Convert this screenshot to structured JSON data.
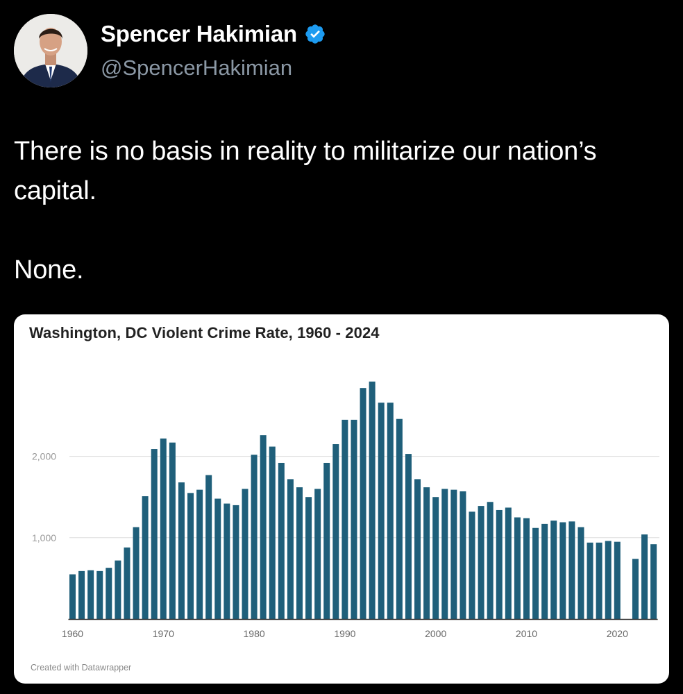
{
  "tweet": {
    "author": {
      "display_name": "Spencer Hakimian",
      "handle": "@SpencerHakimian",
      "verified": true,
      "verified_icon": "verified-badge-icon",
      "verified_color": "#1d9bf0"
    },
    "text_lines": [
      "There is no basis in reality to militarize our nation’s capital.",
      "None."
    ]
  },
  "colors": {
    "background": "#000000",
    "bar": "#1f5f7a",
    "gridline": "#dddddd"
  },
  "chart_credit": "Created with Datawrapper",
  "chart_data": {
    "type": "bar",
    "title": "Washington, DC Violent Crime Rate, 1960 - 2024",
    "xlabel": "",
    "ylabel": "",
    "x": [
      1960,
      1961,
      1962,
      1963,
      1964,
      1965,
      1966,
      1967,
      1968,
      1969,
      1970,
      1971,
      1972,
      1973,
      1974,
      1975,
      1976,
      1977,
      1978,
      1979,
      1980,
      1981,
      1982,
      1983,
      1984,
      1985,
      1986,
      1987,
      1988,
      1989,
      1990,
      1991,
      1992,
      1993,
      1994,
      1995,
      1996,
      1997,
      1998,
      1999,
      2000,
      2001,
      2002,
      2003,
      2004,
      2005,
      2006,
      2007,
      2008,
      2009,
      2010,
      2011,
      2012,
      2013,
      2014,
      2015,
      2016,
      2017,
      2018,
      2019,
      2020,
      2021,
      2022,
      2023,
      2024
    ],
    "values": [
      550,
      590,
      600,
      590,
      630,
      720,
      880,
      1130,
      1510,
      2090,
      2220,
      2170,
      1680,
      1550,
      1590,
      1770,
      1480,
      1420,
      1400,
      1600,
      2020,
      2260,
      2120,
      1920,
      1720,
      1620,
      1500,
      1600,
      1920,
      2150,
      2450,
      2450,
      2840,
      2920,
      2660,
      2660,
      2460,
      2030,
      1720,
      1620,
      1500,
      1600,
      1590,
      1570,
      1320,
      1390,
      1440,
      1340,
      1370,
      1250,
      1240,
      1120,
      1170,
      1210,
      1190,
      1200,
      1130,
      940,
      940,
      960,
      950,
      null,
      740,
      1040,
      920
    ],
    "ylim": [
      0,
      3000
    ],
    "y_ticks": [
      1000,
      2000
    ],
    "y_tick_labels": [
      "1,000",
      "2,000"
    ],
    "x_ticks": [
      1960,
      1970,
      1980,
      1990,
      2000,
      2010,
      2020
    ],
    "x_tick_labels": [
      "1960",
      "1970",
      "1980",
      "1990",
      "2000",
      "2010",
      "2020"
    ],
    "grid": true,
    "legend": "none"
  }
}
